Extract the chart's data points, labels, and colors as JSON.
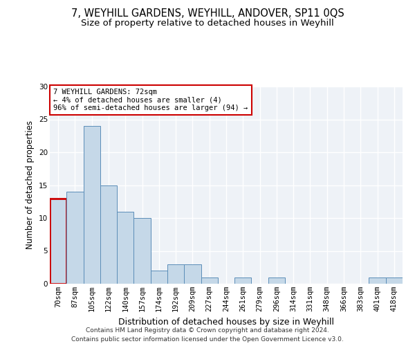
{
  "title_line1": "7, WEYHILL GARDENS, WEYHILL, ANDOVER, SP11 0QS",
  "title_line2": "Size of property relative to detached houses in Weyhill",
  "xlabel": "Distribution of detached houses by size in Weyhill",
  "ylabel": "Number of detached properties",
  "categories": [
    "70sqm",
    "87sqm",
    "105sqm",
    "122sqm",
    "140sqm",
    "157sqm",
    "174sqm",
    "192sqm",
    "209sqm",
    "227sqm",
    "244sqm",
    "261sqm",
    "279sqm",
    "296sqm",
    "314sqm",
    "331sqm",
    "348sqm",
    "366sqm",
    "383sqm",
    "401sqm",
    "418sqm"
  ],
  "values": [
    13,
    14,
    24,
    15,
    11,
    10,
    2,
    3,
    3,
    1,
    0,
    1,
    0,
    1,
    0,
    0,
    0,
    0,
    0,
    1,
    1
  ],
  "bar_color": "#c5d8e8",
  "bar_edge_color": "#5b8db8",
  "highlight_bar_index": 0,
  "highlight_edge_color": "#cc0000",
  "annotation_box_text": "7 WEYHILL GARDENS: 72sqm\n← 4% of detached houses are smaller (4)\n96% of semi-detached houses are larger (94) →",
  "ylim": [
    0,
    30
  ],
  "background_color": "#eef2f7",
  "grid_color": "#ffffff",
  "footer_text": "Contains HM Land Registry data © Crown copyright and database right 2024.\nContains public sector information licensed under the Open Government Licence v3.0.",
  "title_fontsize": 10.5,
  "subtitle_fontsize": 9.5,
  "ylabel_fontsize": 8.5,
  "xlabel_fontsize": 9,
  "tick_fontsize": 7.5,
  "annotation_fontsize": 7.5,
  "footer_fontsize": 6.5
}
